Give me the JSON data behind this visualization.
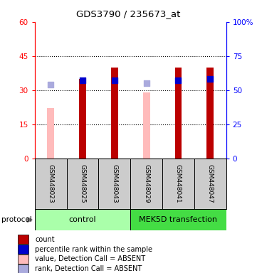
{
  "title": "GDS3790 / 235673_at",
  "samples": [
    "GSM448023",
    "GSM448025",
    "GSM448043",
    "GSM448029",
    "GSM448041",
    "GSM448047"
  ],
  "count_values": [
    null,
    35,
    40,
    null,
    40,
    40
  ],
  "count_absent_values": [
    22,
    null,
    null,
    29,
    null,
    null
  ],
  "percentile_values": [
    null,
    57,
    57,
    null,
    57,
    58
  ],
  "percentile_absent_values": [
    54,
    null,
    null,
    55,
    null,
    null
  ],
  "ylim_left": [
    0,
    60
  ],
  "ylim_right": [
    0,
    100
  ],
  "yticks_left": [
    0,
    15,
    30,
    45,
    60
  ],
  "yticks_right": [
    0,
    25,
    50,
    75,
    100
  ],
  "ytick_labels_left": [
    "0",
    "15",
    "30",
    "45",
    "60"
  ],
  "ytick_labels_right": [
    "0",
    "25",
    "50",
    "75",
    "100%"
  ],
  "bar_color": "#bb0000",
  "bar_absent_color": "#ffbbbb",
  "dot_color": "#0000cc",
  "dot_absent_color": "#aaaadd",
  "control_color": "#aaffaa",
  "mek_color": "#44dd44",
  "sample_box_color": "#cccccc",
  "control_label": "control",
  "mek_label": "MEK5D transfection",
  "legend_items": [
    {
      "label": "count",
      "color": "#bb0000"
    },
    {
      "label": "percentile rank within the sample",
      "color": "#0000cc"
    },
    {
      "label": "value, Detection Call = ABSENT",
      "color": "#ffbbbb"
    },
    {
      "label": "rank, Detection Call = ABSENT",
      "color": "#aaaadd"
    }
  ],
  "dot_size": 40,
  "bar_width": 0.4
}
